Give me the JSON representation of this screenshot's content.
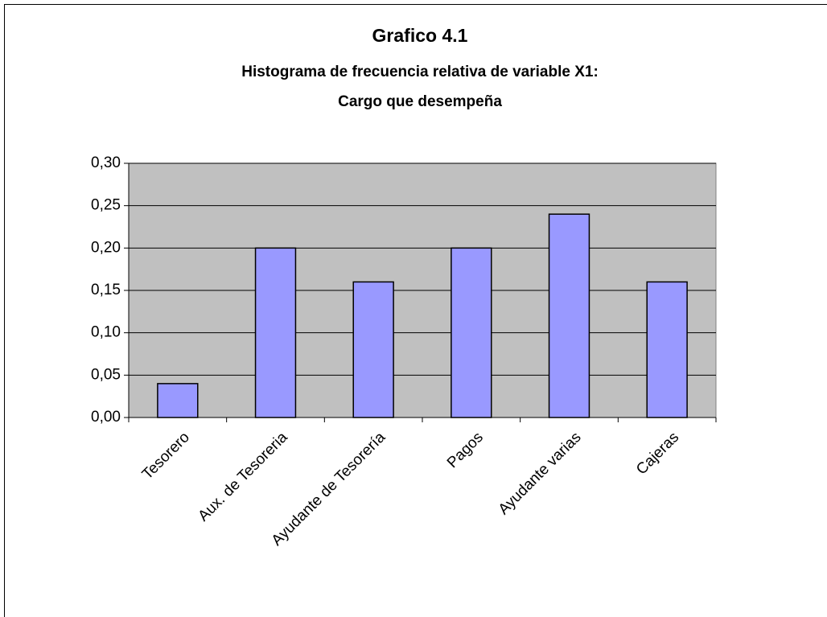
{
  "chart_data": {
    "type": "bar",
    "title": [
      "Grafico 4.1",
      "Histograma de frecuencia relativa de variable X1:",
      "Cargo que desempeña"
    ],
    "categories": [
      "Tesorero",
      "Aux. de Tesoreria",
      "Ayudante de Tesorería",
      "Pagos",
      "Ayudante varias",
      "Cajeras"
    ],
    "values": [
      0.04,
      0.2,
      0.16,
      0.2,
      0.24,
      0.16
    ],
    "color": "#9999ff",
    "ylim": [
      0,
      0.3
    ],
    "yticks": [
      {
        "value": 0,
        "label": "0,00"
      },
      {
        "value": 0.05,
        "label": "0,05"
      },
      {
        "value": 0.1,
        "label": "0,10"
      },
      {
        "value": 0.15,
        "label": "0,15"
      },
      {
        "value": 0.2,
        "label": "0,20"
      },
      {
        "value": 0.25,
        "label": "0,25"
      },
      {
        "value": 0.3,
        "label": "0,30"
      }
    ],
    "grid": true
  }
}
